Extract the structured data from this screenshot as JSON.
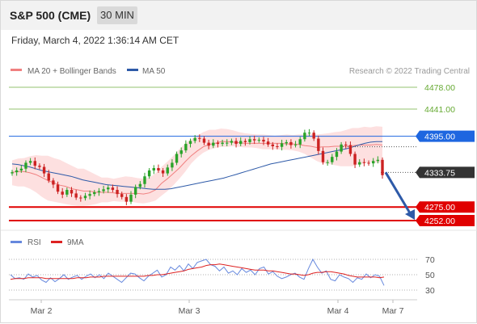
{
  "header": {
    "instrument": "S&P 500 (CME)",
    "timeframe": "30 MIN",
    "datetime": "Friday, March 4, 2022 1:36:14 AM CET"
  },
  "legend": {
    "bb_label": "MA 20 + Bollinger Bands",
    "ma50_label": "MA 50",
    "credit": "Research © 2022 Trading Central",
    "rsi_label": "RSI",
    "rsi_ma_label": "9MA"
  },
  "colors": {
    "resistance": "#66aa33",
    "pivot": "#1e66e0",
    "support": "#e00000",
    "price_tag": "#333333",
    "ma20": "#f08080",
    "ma50": "#2e5aa8",
    "bb_fill": "#fde0e0",
    "candle_up": "#29a329",
    "candle_down": "#cc2222",
    "arrow": "#2e5aa8",
    "rsi": "#6688dd",
    "rsi_ma": "#dd2222"
  },
  "chart_data": [
    {
      "type": "candlestick",
      "xlabels": [
        "Mar 2",
        "Mar 3",
        "Mar 4",
        "Mar 7"
      ],
      "ylim": [
        4230,
        4490
      ],
      "levels": [
        {
          "name": "resistance-2",
          "value": 4478.0,
          "label": "4478.00",
          "kind": "resistance"
        },
        {
          "name": "resistance-1",
          "value": 4441.0,
          "label": "4441.00",
          "kind": "resistance"
        },
        {
          "name": "pivot",
          "value": 4395.0,
          "label": "4395.00",
          "kind": "pivot"
        },
        {
          "name": "last-price",
          "value": 4333.75,
          "label": "4333.75",
          "kind": "price"
        },
        {
          "name": "support-1",
          "value": 4275.0,
          "label": "4275.00",
          "kind": "support"
        },
        {
          "name": "support-2",
          "value": 4252.0,
          "label": "4252.00",
          "kind": "support"
        }
      ],
      "close": [
        4334,
        4337,
        4340,
        4350,
        4353,
        4345,
        4343,
        4332,
        4320,
        4313,
        4301,
        4296,
        4304,
        4298,
        4291,
        4290,
        4294,
        4297,
        4300,
        4302,
        4305,
        4308,
        4304,
        4297,
        4292,
        4284,
        4296,
        4309,
        4314,
        4327,
        4337,
        4341,
        4337,
        4332,
        4342,
        4350,
        4365,
        4371,
        4382,
        4387,
        4392,
        4391,
        4384,
        4379,
        4384,
        4382,
        4384,
        4384,
        4387,
        4382,
        4387,
        4385,
        4390,
        4388,
        4389,
        4386,
        4381,
        4378,
        4377,
        4383,
        4385,
        4380,
        4381,
        4390,
        4401,
        4401,
        4391,
        4370,
        4351,
        4351,
        4360,
        4369,
        4381,
        4380,
        4365,
        4347,
        4351,
        4350,
        4349,
        4353,
        4355,
        4329
      ],
      "bollinger": {
        "upper": [
          4354,
          4357,
          4358,
          4361,
          4363,
          4362,
          4362,
          4358,
          4355,
          4350,
          4345,
          4340,
          4340,
          4335,
          4330,
          4325,
          4325,
          4323,
          4325,
          4327,
          4326,
          4324,
          4323,
          4325,
          4332,
          4343,
          4352,
          4362,
          4373,
          4383,
          4390,
          4396,
          4402,
          4406,
          4406,
          4408,
          4407,
          4405,
          4402,
          4400,
          4399,
          4398,
          4398,
          4397,
          4396,
          4397,
          4398,
          4397,
          4398,
          4398,
          4399,
          4398,
          4399,
          4400,
          4402,
          4403,
          4406,
          4409,
          4409,
          4411,
          4410,
          4412,
          4411
        ],
        "lower": [
          4312,
          4310,
          4310,
          4306,
          4300,
          4292,
          4286,
          4284,
          4282,
          4280,
          4278,
          4277,
          4277,
          4278,
          4280,
          4283,
          4283,
          4285,
          4284,
          4284,
          4284,
          4282,
          4281,
          4283,
          4286,
          4294,
          4302,
          4312,
          4323,
          4335,
          4349,
          4359,
          4367,
          4372,
          4375,
          4377,
          4377,
          4378,
          4377,
          4376,
          4376,
          4375,
          4373,
          4373,
          4373,
          4372,
          4372,
          4371,
          4369,
          4365,
          4359,
          4353,
          4349,
          4348,
          4346,
          4344,
          4344,
          4344,
          4347,
          4349,
          4351,
          4350,
          4350
        ],
        "ma20": [
          4334,
          4335,
          4335,
          4333,
          4330,
          4325,
          4320,
          4316,
          4312,
          4310,
          4306,
          4304,
          4302,
          4302,
          4300,
          4300,
          4300,
          4299,
          4298,
          4298,
          4298,
          4298,
          4297,
          4299,
          4304,
          4315,
          4323,
          4332,
          4341,
          4352,
          4362,
          4370,
          4377,
          4381,
          4383,
          4386,
          4386,
          4385,
          4384,
          4383,
          4383,
          4383,
          4383,
          4383,
          4383,
          4383,
          4382,
          4382,
          4381,
          4379,
          4378,
          4376,
          4377,
          4377,
          4378,
          4378,
          4378,
          4379,
          4380,
          4380,
          4380,
          4381,
          4380
        ]
      },
      "ma50": [
        4348,
        4347,
        4345,
        4343,
        4340,
        4337,
        4335,
        4333,
        4331,
        4329,
        4327,
        4324,
        4321,
        4319,
        4317,
        4315,
        4313,
        4312,
        4311,
        4310,
        4309,
        4308,
        4307,
        4306,
        4305,
        4305,
        4305,
        4306,
        4308,
        4310,
        4312,
        4314,
        4316,
        4318,
        4320,
        4322,
        4324,
        4327,
        4330,
        4333,
        4336,
        4339,
        4342,
        4345,
        4348,
        4350,
        4352,
        4354,
        4356,
        4358,
        4360,
        4362,
        4364,
        4366,
        4368,
        4370,
        4372,
        4374,
        4377,
        4380,
        4383,
        4385,
        4386,
        4386
      ],
      "projection": {
        "from": 4333.75,
        "to": 4252.0
      }
    },
    {
      "type": "line",
      "name": "RSI panel",
      "ylim": [
        20,
        80
      ],
      "yticks": [
        30,
        50,
        70
      ],
      "series": [
        {
          "name": "RSI",
          "values": [
            50,
            45,
            46,
            44,
            51,
            47,
            49,
            43,
            40,
            46,
            41,
            45,
            50,
            44,
            47,
            49,
            44,
            48,
            51,
            46,
            50,
            45,
            52,
            48,
            44,
            40,
            46,
            52,
            51,
            46,
            42,
            48,
            52,
            56,
            47,
            50,
            60,
            56,
            62,
            55,
            64,
            58,
            66,
            68,
            70,
            63,
            61,
            55,
            60,
            52,
            55,
            50,
            58,
            53,
            56,
            50,
            58,
            60,
            51,
            54,
            48,
            45,
            47,
            50,
            52,
            47,
            44,
            58,
            70,
            60,
            52,
            55,
            44,
            42,
            50,
            47,
            45,
            40,
            46,
            44,
            51,
            46,
            50,
            48,
            36
          ]
        },
        {
          "name": "9MA",
          "values": [
            44,
            45,
            45,
            45,
            46,
            46,
            46,
            46,
            45,
            45,
            45,
            45,
            45,
            45,
            45,
            46,
            46,
            46,
            47,
            47,
            47,
            48,
            48,
            48,
            48,
            48,
            48,
            48,
            48,
            48,
            48,
            49,
            49,
            50,
            50,
            51,
            52,
            53,
            54,
            55,
            57,
            58,
            59,
            60,
            62,
            63,
            63,
            64,
            63,
            62,
            61,
            60,
            59,
            58,
            57,
            56,
            56,
            56,
            55,
            55,
            54,
            53,
            52,
            51,
            51,
            50,
            49,
            50,
            52,
            53,
            53,
            54,
            54,
            53,
            52,
            51,
            49,
            48,
            47,
            47,
            47,
            47,
            47,
            46,
            47
          ]
        }
      ]
    }
  ]
}
